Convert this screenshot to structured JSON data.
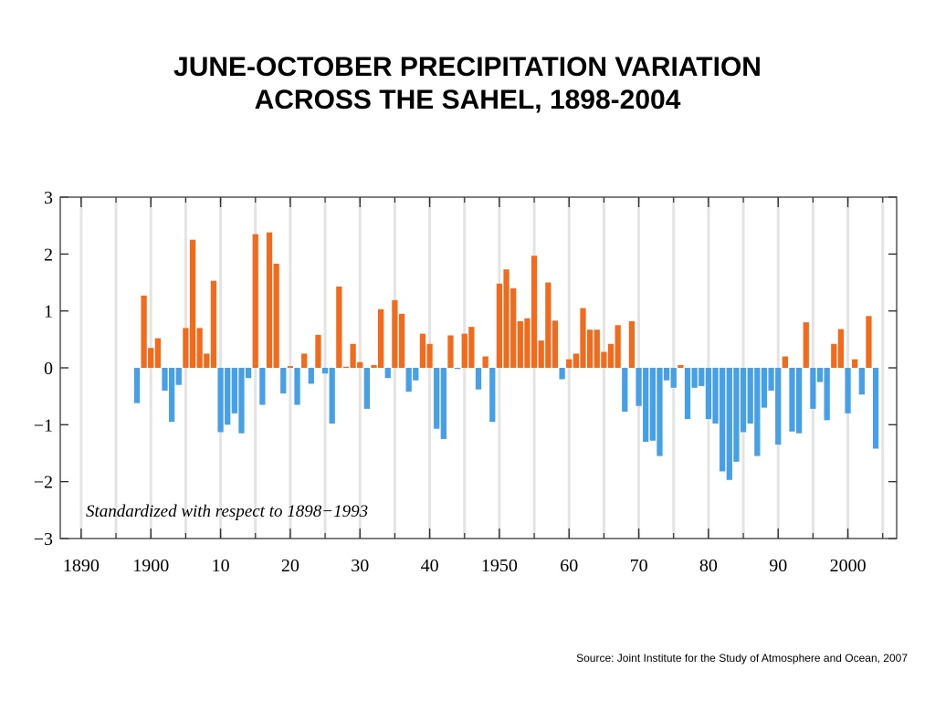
{
  "title": {
    "line1": "JUNE-OCTOBER PRECIPITATION VARIATION",
    "line2": "ACROSS THE SAHEL, 1898-2004"
  },
  "source": "Source: Joint Institute for the Study of Atmosphere and Ocean, 2007",
  "chart_data": {
    "type": "bar",
    "title": "JUNE-OCTOBER PRECIPITATION VARIATION ACROSS THE SAHEL, 1898-2004",
    "annotation": "Standardized with respect to 1898−1993",
    "colors": {
      "positive": "#f26a1b",
      "negative": "#45a0e8"
    },
    "xlim": [
      1887,
      2007
    ],
    "ylim": [
      -3,
      3
    ],
    "x_ticks": [
      1890,
      1900,
      1910,
      1920,
      1930,
      1940,
      1950,
      1960,
      1970,
      1980,
      1990,
      2000
    ],
    "x_tick_labels": [
      "1890",
      "1900",
      "10",
      "20",
      "30",
      "40",
      "1950",
      "60",
      "70",
      "80",
      "90",
      "2000"
    ],
    "y_ticks": [
      -3,
      -2,
      -1,
      0,
      1,
      2,
      3
    ],
    "y_tick_labels": [
      "−3",
      "−2",
      "−1",
      "0",
      "1",
      "2",
      "3"
    ],
    "grid": "vertical",
    "x": [
      1898,
      1899,
      1900,
      1901,
      1902,
      1903,
      1904,
      1905,
      1906,
      1907,
      1908,
      1909,
      1910,
      1911,
      1912,
      1913,
      1914,
      1915,
      1916,
      1917,
      1918,
      1919,
      1920,
      1921,
      1922,
      1923,
      1924,
      1925,
      1926,
      1927,
      1928,
      1929,
      1930,
      1931,
      1932,
      1933,
      1934,
      1935,
      1936,
      1937,
      1938,
      1939,
      1940,
      1941,
      1942,
      1943,
      1944,
      1945,
      1946,
      1947,
      1948,
      1949,
      1950,
      1951,
      1952,
      1953,
      1954,
      1955,
      1956,
      1957,
      1958,
      1959,
      1960,
      1961,
      1962,
      1963,
      1964,
      1965,
      1966,
      1967,
      1968,
      1969,
      1970,
      1971,
      1972,
      1973,
      1974,
      1975,
      1976,
      1977,
      1978,
      1979,
      1980,
      1981,
      1982,
      1983,
      1984,
      1985,
      1986,
      1987,
      1988,
      1989,
      1990,
      1991,
      1992,
      1993,
      1994,
      1995,
      1996,
      1997,
      1998,
      1999,
      2000,
      2001,
      2002,
      2003,
      2004
    ],
    "values": [
      -0.62,
      1.27,
      0.35,
      0.52,
      -0.4,
      -0.95,
      -0.3,
      0.7,
      2.25,
      0.7,
      0.25,
      1.53,
      -1.13,
      -1.0,
      -0.8,
      -1.15,
      -0.18,
      2.35,
      -0.65,
      2.38,
      1.83,
      -0.45,
      0.03,
      -0.65,
      0.25,
      -0.28,
      0.58,
      -0.1,
      -0.98,
      1.43,
      0.02,
      0.42,
      0.1,
      -0.72,
      0.05,
      1.03,
      -0.18,
      1.19,
      0.95,
      -0.42,
      -0.22,
      0.6,
      0.42,
      -1.07,
      -1.25,
      0.57,
      -0.02,
      0.6,
      0.72,
      -0.38,
      0.2,
      -0.95,
      1.48,
      1.73,
      1.4,
      0.82,
      0.87,
      1.97,
      0.48,
      1.5,
      0.83,
      -0.2,
      0.15,
      0.25,
      1.05,
      0.67,
      0.67,
      0.28,
      0.42,
      0.75,
      -0.77,
      0.82,
      -0.67,
      -1.3,
      -1.28,
      -1.55,
      -0.22,
      -0.35,
      0.05,
      -0.9,
      -0.35,
      -0.32,
      -0.9,
      -0.98,
      -1.82,
      -1.97,
      -1.65,
      -1.13,
      -0.98,
      -1.55,
      -0.7,
      -0.4,
      -1.35,
      0.2,
      -1.12,
      -1.15,
      0.8,
      -0.72,
      -0.25,
      -0.92,
      0.42,
      0.68,
      -0.8,
      0.15,
      -0.47,
      0.91,
      -1.42
    ]
  }
}
